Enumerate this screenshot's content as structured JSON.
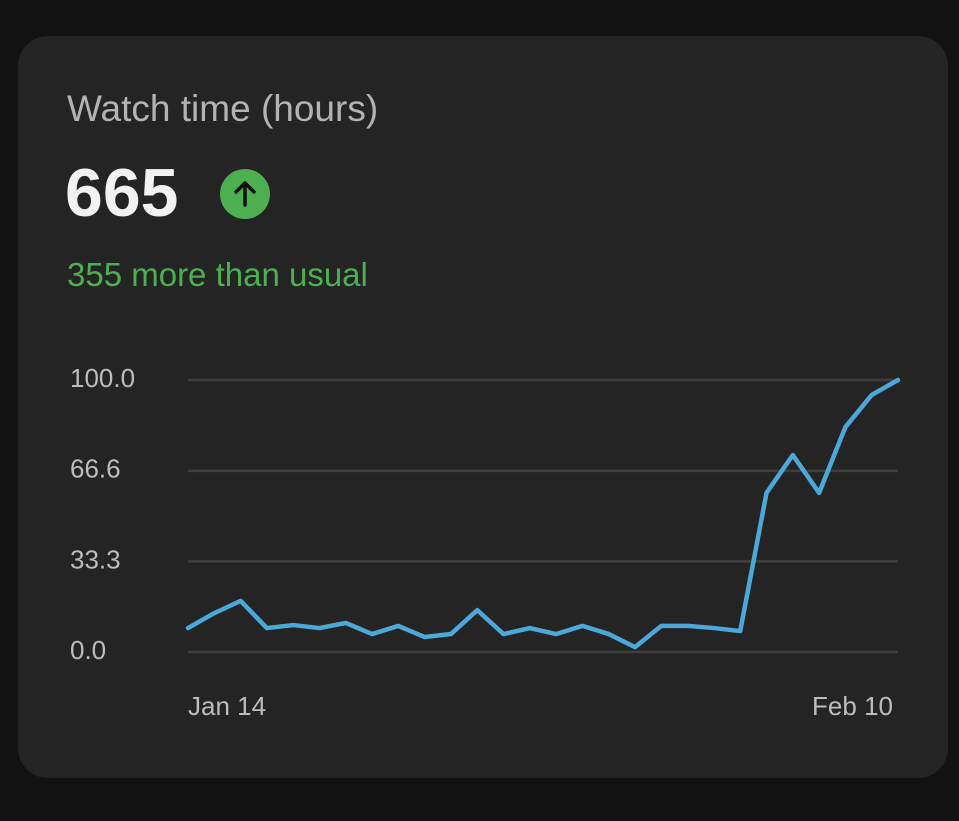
{
  "header": {
    "title": "Watch time (hours)"
  },
  "metric": {
    "value": 665,
    "note": "355 more than usual"
  },
  "chart_data": {
    "type": "line",
    "categories": [
      "Jan 14",
      null,
      null,
      null,
      null,
      null,
      null,
      null,
      null,
      null,
      null,
      null,
      null,
      null,
      null,
      null,
      null,
      null,
      null,
      null,
      null,
      null,
      null,
      null,
      null,
      null,
      null,
      "Feb 10"
    ],
    "series": [
      {
        "color": "#4ba9d9",
        "values": [
          8.8,
          14.3,
          18.8,
          8.8,
          9.9,
          8.8,
          10.7,
          6.6,
          9.6,
          5.5,
          6.6,
          15.4,
          6.6,
          8.8,
          6.6,
          9.6,
          6.6,
          1.8,
          9.6,
          9.6,
          8.8,
          7.7,
          58.5,
          72.4,
          58.5,
          82.7,
          94.5,
          100
        ]
      }
    ],
    "ylim": [
      0,
      100
    ],
    "yticks": [
      {
        "value": 0,
        "label": "0.0"
      },
      33.3,
      66.6,
      {
        "value": 100,
        "label": "100.0"
      }
    ],
    "grid": true
  }
}
